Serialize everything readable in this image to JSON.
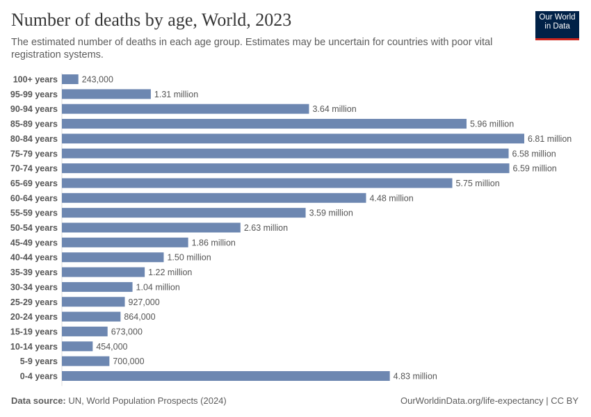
{
  "chart_data": {
    "type": "bar",
    "orientation": "horizontal",
    "title": "Number of deaths by age, World, 2023",
    "subtitle": "The estimated number of deaths in each age group. Estimates may be uncertain for countries with poor vital registration systems.",
    "categories": [
      "100+ years",
      "95-99 years",
      "90-94 years",
      "85-89 years",
      "80-84 years",
      "75-79 years",
      "70-74 years",
      "65-69 years",
      "60-64 years",
      "55-59 years",
      "50-54 years",
      "45-49 years",
      "40-44 years",
      "35-39 years",
      "30-34 years",
      "25-29 years",
      "20-24 years",
      "15-19 years",
      "10-14 years",
      "5-9 years",
      "0-4 years"
    ],
    "values": [
      243000,
      1310000,
      3640000,
      5960000,
      6810000,
      6580000,
      6590000,
      5750000,
      4480000,
      3590000,
      2630000,
      1860000,
      1500000,
      1220000,
      1040000,
      927000,
      864000,
      673000,
      454000,
      700000,
      4830000
    ],
    "value_labels": [
      "243,000",
      "1.31 million",
      "3.64 million",
      "5.96 million",
      "6.81 million",
      "6.58 million",
      "6.59 million",
      "5.75 million",
      "4.48 million",
      "3.59 million",
      "2.63 million",
      "1.86 million",
      "1.50 million",
      "1.22 million",
      "1.04 million",
      "927,000",
      "864,000",
      "673,000",
      "454,000",
      "700,000",
      "4.83 million"
    ],
    "bar_color": "#6d87b1",
    "grid": false
  },
  "logo": {
    "line1": "Our World",
    "line2": "in Data"
  },
  "footer": {
    "source_label": "Data source:",
    "source_text": "UN, World Population Prospects (2024)",
    "url": "OurWorldinData.org/life-expectancy | CC BY"
  }
}
